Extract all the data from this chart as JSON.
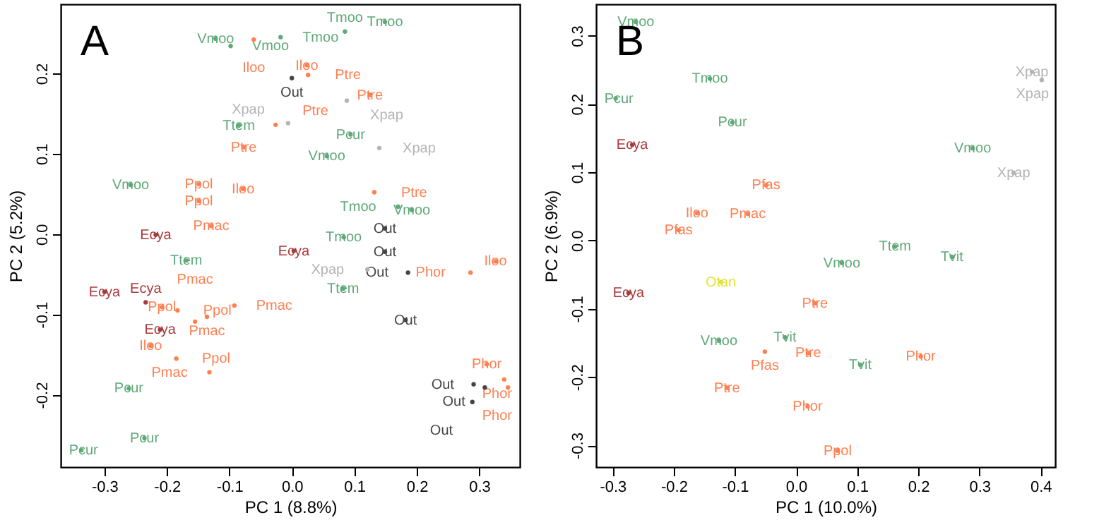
{
  "chart_data": [
    {
      "type": "scatter",
      "title": "A",
      "xlabel": "PC 1 (8.8%)",
      "ylabel": "PC 2 (5.2%)",
      "xlim": [
        -0.37,
        0.365
      ],
      "ylim": [
        -0.29,
        0.286
      ],
      "xticks": [
        -0.3,
        -0.2,
        -0.1,
        {
          "value": 0,
          "label": "0.0"
        },
        0.1,
        0.2,
        0.3
      ],
      "yticks": [
        -0.2,
        -0.1,
        {
          "value": 0,
          "label": "0.0"
        },
        0.1,
        0.2
      ],
      "series": [
        {
          "name": "Vmoo",
          "color": "#5fa878",
          "x": [
            -0.122,
            -0.098,
            0.056,
            0.192,
            -0.258
          ],
          "values": [
            0.243,
            0.234,
            0.097,
            0.03,
            0.061
          ]
        },
        {
          "name": "Tmoo",
          "color": "#5fa878",
          "x": [
            -0.018,
            0.149,
            0.085,
            0.17,
            0.083
          ],
          "values": [
            0.245,
            0.264,
            0.252,
            0.034,
            -0.004
          ]
        },
        {
          "name": "Ttem",
          "color": "#5fa878",
          "x": [
            -0.085,
            -0.169,
            0.082
          ],
          "values": [
            0.135,
            -0.033,
            -0.068
          ]
        },
        {
          "name": "Pcur",
          "color": "#5fa878",
          "x": [
            0.094,
            -0.261,
            -0.236,
            -0.337
          ],
          "values": [
            0.124,
            -0.192,
            -0.254,
            -0.269
          ]
        },
        {
          "name": "Iloo",
          "color": "#ff7f50",
          "x": [
            -0.061,
            0.024,
            -0.078,
            0.326,
            -0.226
          ],
          "values": [
            0.242,
            0.21,
            0.056,
            -0.034,
            -0.139
          ]
        },
        {
          "name": "Ptre",
          "color": "#ff7f50",
          "x": [
            0.026,
            -0.026,
            -0.077,
            0.125,
            0.132
          ],
          "values": [
            0.198,
            0.136,
            0.108,
            0.173,
            0.052
          ]
        },
        {
          "name": "Ppol",
          "color": "#ff7f50",
          "x": [
            -0.149,
            -0.149,
            -0.208,
            -0.183,
            -0.185
          ],
          "values": [
            0.062,
            0.041,
            -0.091,
            -0.095,
            -0.155
          ]
        },
        {
          "name": "Pmac",
          "color": "#ff7f50",
          "x": [
            -0.129,
            -0.092,
            -0.136,
            -0.155,
            -0.132
          ],
          "values": [
            0.01,
            -0.089,
            -0.103,
            -0.109,
            -0.172
          ]
        },
        {
          "name": "Phor",
          "color": "#ff7f50",
          "x": [
            0.286,
            0.312,
            0.34,
            0.346
          ],
          "values": [
            -0.048,
            -0.162,
            -0.181,
            -0.191
          ]
        },
        {
          "name": "Ecya",
          "color": "#a83a3c",
          "x": [
            -0.218,
            0.003,
            -0.3,
            -0.234,
            -0.211
          ],
          "values": [
            -0.001,
            -0.021,
            -0.072,
            -0.085,
            -0.119
          ]
        },
        {
          "name": "Out",
          "color": "#444444",
          "x": [
            0.0,
            0.149,
            0.149,
            0.186,
            0.182,
            0.291,
            0.309,
            0.289
          ],
          "values": [
            0.194,
            0.007,
            -0.022,
            -0.048,
            -0.107,
            -0.187,
            -0.191,
            -0.209
          ]
        },
        {
          "name": "Xpap",
          "color": "#b4b4b4",
          "x": [
            -0.006,
            0.088,
            0.14,
            0.121
          ],
          "values": [
            0.138,
            0.166,
            0.107,
            -0.044
          ]
        }
      ]
    },
    {
      "type": "scatter",
      "title": "B",
      "xlabel": "PC 1 (10.0%)",
      "ylabel": "PC 2 (6.9%)",
      "xlim": [
        -0.327,
        0.424
      ],
      "ylim": [
        -0.332,
        0.346
      ],
      "xticks": [
        -0.3,
        -0.2,
        -0.1,
        {
          "value": 0,
          "label": "0.0"
        },
        0.1,
        0.2,
        0.3,
        0.4
      ],
      "yticks": [
        -0.3,
        -0.2,
        -0.1,
        {
          "value": 0,
          "label": "0.0"
        },
        0.1,
        0.2,
        0.3
      ],
      "series": [
        {
          "name": "Vmoo",
          "color": "#5fa878",
          "x": [
            -0.262,
            0.289,
            0.075,
            -0.126
          ],
          "values": [
            0.32,
            0.135,
            -0.033,
            -0.147
          ]
        },
        {
          "name": "Tmoo",
          "color": "#5fa878",
          "x": [
            -0.141
          ],
          "values": [
            0.237
          ]
        },
        {
          "name": "Pcur",
          "color": "#5fa878",
          "x": [
            -0.295,
            -0.104
          ],
          "values": [
            0.208,
            0.173
          ]
        },
        {
          "name": "Ttem",
          "color": "#5fa878",
          "x": [
            0.162
          ],
          "values": [
            -0.009
          ]
        },
        {
          "name": "Tvit",
          "color": "#5fa878",
          "x": [
            0.255,
            -0.018,
            0.105
          ],
          "values": [
            -0.024,
            -0.142,
            -0.182
          ]
        },
        {
          "name": "Ecya",
          "color": "#a83a3c",
          "x": [
            -0.268,
            -0.274
          ],
          "values": [
            0.14,
            -0.077
          ]
        },
        {
          "name": "Xpap",
          "color": "#b4b4b4",
          "x": [
            0.386,
            0.402,
            0.356
          ],
          "values": [
            0.247,
            0.235,
            0.099
          ]
        },
        {
          "name": "Pfas",
          "color": "#ff7f50",
          "x": [
            -0.049,
            -0.192,
            -0.051
          ],
          "values": [
            0.081,
            0.015,
            -0.163
          ]
        },
        {
          "name": "Iloo",
          "color": "#ff7f50",
          "x": [
            -0.162
          ],
          "values": [
            0.04
          ]
        },
        {
          "name": "Pmac",
          "color": "#ff7f50",
          "x": [
            -0.079
          ],
          "values": [
            0.039
          ]
        },
        {
          "name": "Otan",
          "color": "#e3e335",
          "x": [
            -0.123
          ],
          "values": [
            -0.061
          ]
        },
        {
          "name": "Ptre",
          "color": "#ff7f50",
          "x": [
            0.031,
            0.02,
            -0.113
          ],
          "values": [
            -0.092,
            -0.165,
            -0.216
          ]
        },
        {
          "name": "Phor",
          "color": "#ff7f50",
          "x": [
            0.204,
            0.019
          ],
          "values": [
            -0.17,
            -0.243
          ]
        },
        {
          "name": "Ppol",
          "color": "#ff7f50",
          "x": [
            0.068
          ],
          "values": [
            -0.308
          ]
        }
      ]
    }
  ]
}
